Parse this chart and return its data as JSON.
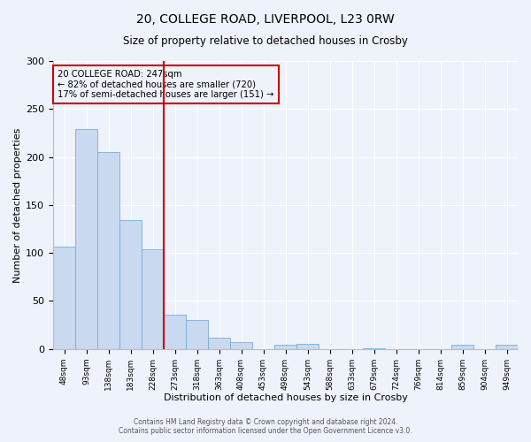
{
  "title_line1": "20, COLLEGE ROAD, LIVERPOOL, L23 0RW",
  "title_line2": "Size of property relative to detached houses in Crosby",
  "xlabel": "Distribution of detached houses by size in Crosby",
  "ylabel": "Number of detached properties",
  "bar_labels": [
    "48sqm",
    "93sqm",
    "138sqm",
    "183sqm",
    "228sqm",
    "273sqm",
    "318sqm",
    "363sqm",
    "408sqm",
    "453sqm",
    "498sqm",
    "543sqm",
    "588sqm",
    "633sqm",
    "679sqm",
    "724sqm",
    "769sqm",
    "814sqm",
    "859sqm",
    "904sqm",
    "949sqm"
  ],
  "bar_values": [
    107,
    229,
    205,
    134,
    104,
    36,
    30,
    12,
    7,
    0,
    4,
    5,
    0,
    0,
    1,
    0,
    0,
    0,
    4,
    0,
    4
  ],
  "bar_color": "#c8d9f0",
  "bar_edge_color": "#7aadd4",
  "vline_color": "#cc0000",
  "vline_x_bin": 5,
  "annotation_title": "20 COLLEGE ROAD: 247sqm",
  "annotation_line1": "← 82% of detached houses are smaller (720)",
  "annotation_line2": "17% of semi-detached houses are larger (151) →",
  "annotation_box_color": "#cc0000",
  "ylim": [
    0,
    300
  ],
  "yticks": [
    0,
    50,
    100,
    150,
    200,
    250,
    300
  ],
  "footer_line1": "Contains HM Land Registry data © Crown copyright and database right 2024.",
  "footer_line2": "Contains public sector information licensed under the Open Government Licence v3.0.",
  "bg_color": "#eef2fa"
}
